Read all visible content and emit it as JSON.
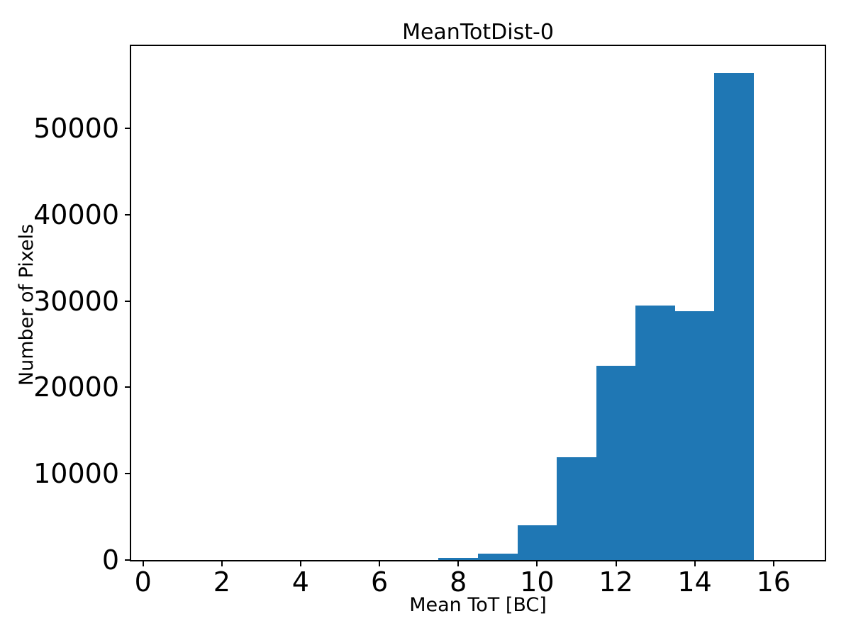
{
  "figure": {
    "title": "MeanTotDist-0"
  },
  "chart_data": {
    "type": "bar",
    "subtype": "histogram",
    "title": "MeanTotDist-0",
    "xlabel": "Mean ToT [BC]",
    "ylabel": "Number of Pixels",
    "bar_color": "#1f77b4",
    "axis_color": "#000000",
    "background_color": "#ffffff",
    "grid": false,
    "legend_position": "none",
    "xlim": [
      -0.3,
      17.3
    ],
    "ylim": [
      0,
      59500
    ],
    "xticks": [
      0,
      2,
      4,
      6,
      8,
      10,
      12,
      14,
      16
    ],
    "yticks": [
      0,
      10000,
      20000,
      30000,
      40000,
      50000
    ],
    "bin_edges": [
      7.5,
      8.5,
      9.5,
      10.5,
      11.5,
      12.5,
      13.5,
      14.5,
      15.5
    ],
    "counts": [
      250,
      750,
      4000,
      11900,
      22500,
      29500,
      28800,
      56400
    ]
  }
}
